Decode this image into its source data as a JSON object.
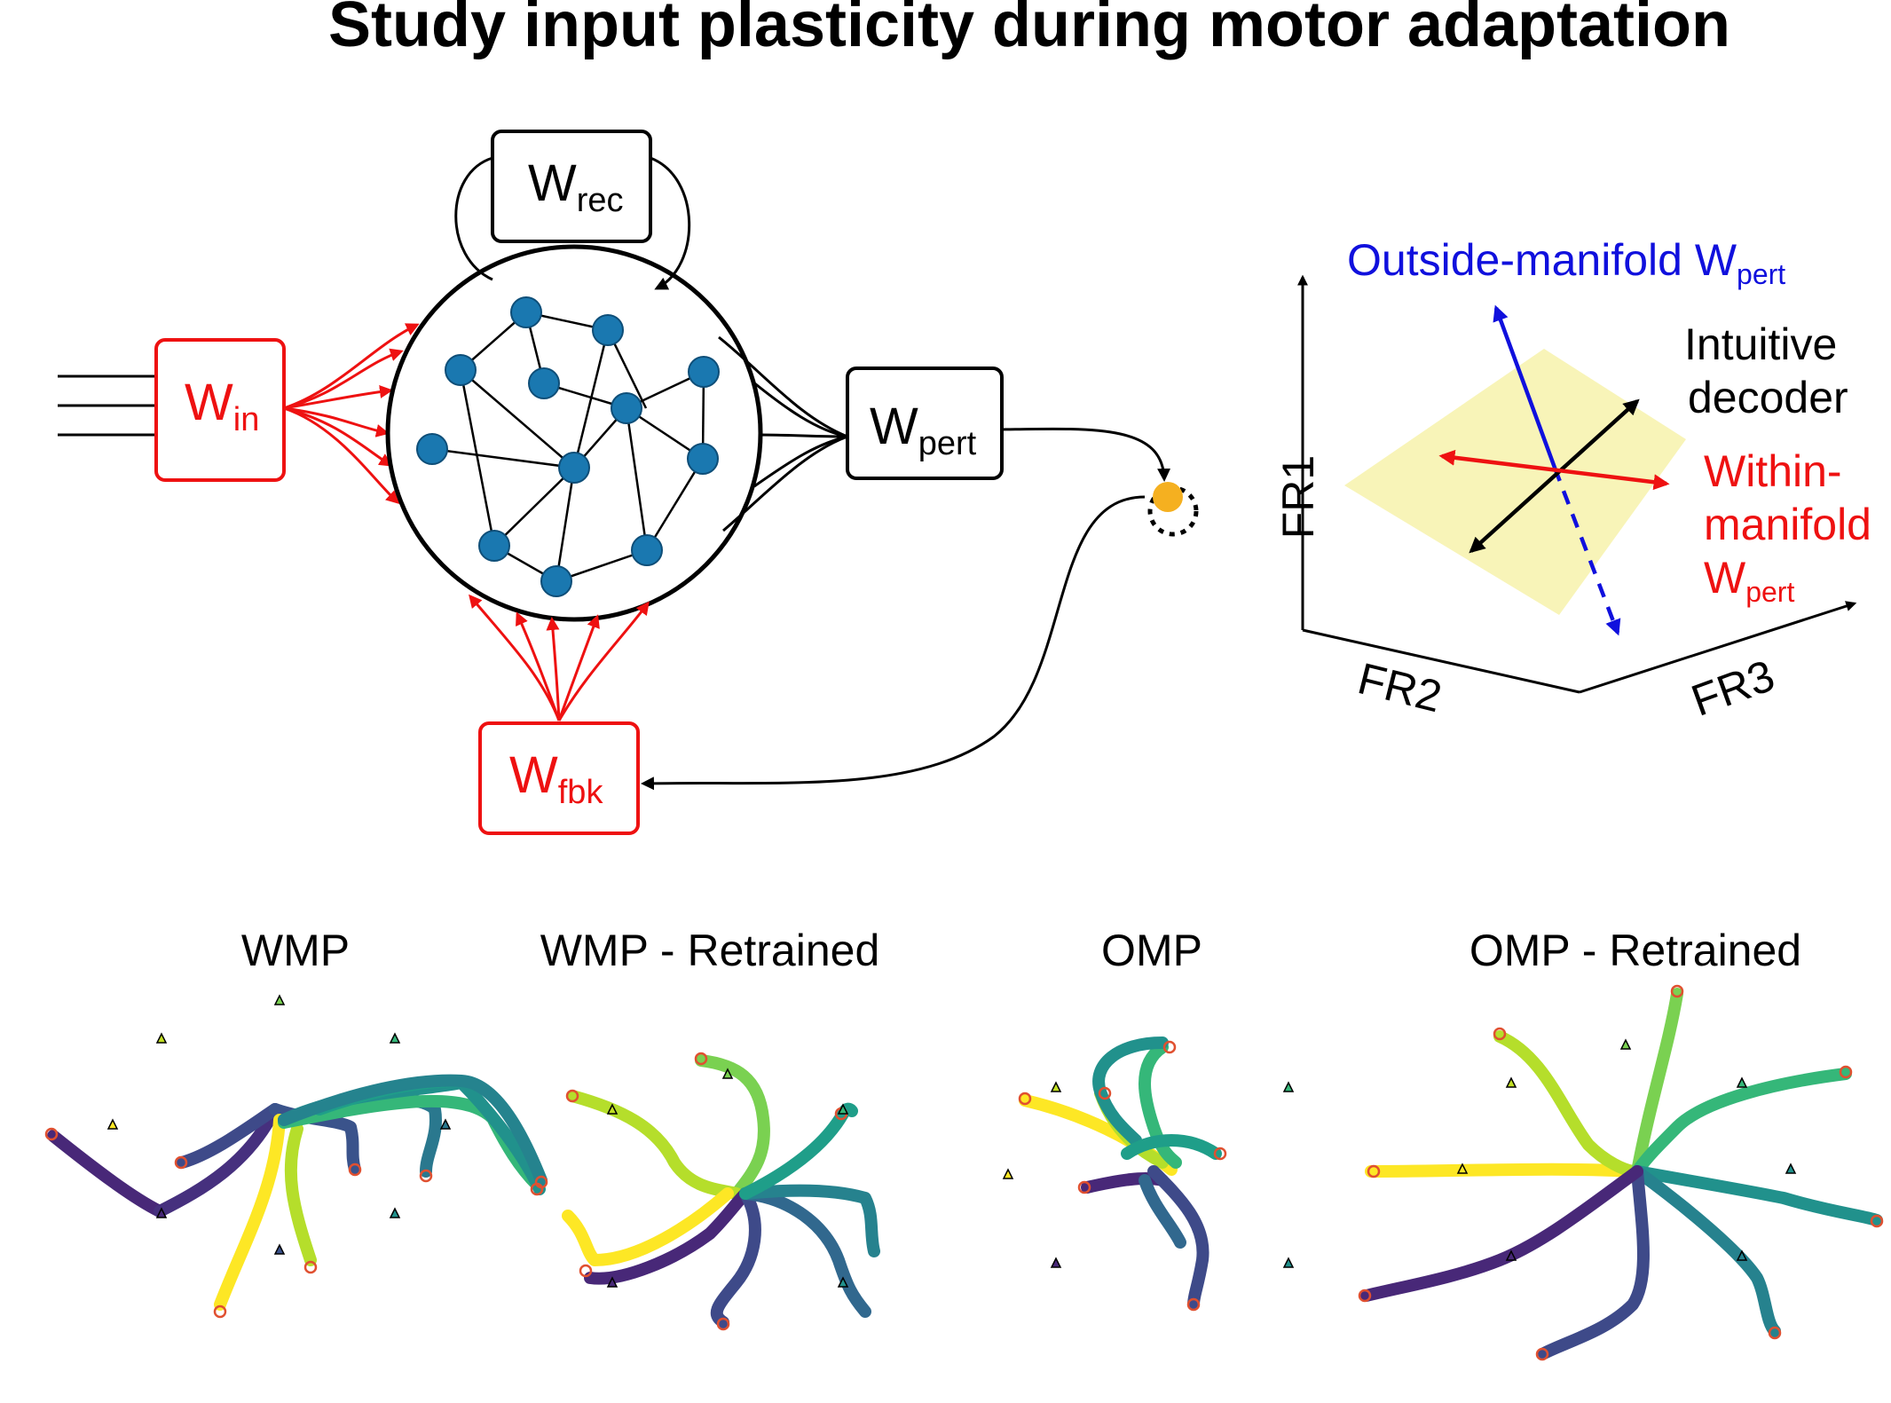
{
  "title": "Study input plasticity during motor adaptation",
  "network": {
    "w_rec": {
      "main": "W",
      "sub": "rec"
    },
    "w_in": {
      "main": "W",
      "sub": "in"
    },
    "w_pert": {
      "main": "W",
      "sub": "pert"
    },
    "w_fbk": {
      "main": "W",
      "sub": "fbk"
    }
  },
  "manifold": {
    "outside_main": "Outside-manifold W",
    "outside_sub": "pert",
    "intuitive_line1": "Intuitive",
    "intuitive_line2": "decoder",
    "within_line1": "Within-",
    "within_line2": "manifold",
    "within_line3_main": "W",
    "within_line3_sub": "pert",
    "axis_fr1": "FR1",
    "axis_fr2": "FR2",
    "axis_fr3": "FR3"
  },
  "colors": {
    "red": "#ee1111",
    "blue": "#1010dd",
    "node": "#1a78b0",
    "cursor": "#f5b020",
    "manifold_plane": "#f8f4b8"
  },
  "panels": [
    {
      "label": "WMP"
    },
    {
      "label": "WMP - Retrained"
    },
    {
      "label": "OMP"
    },
    {
      "label": "OMP - Retrained"
    }
  ]
}
